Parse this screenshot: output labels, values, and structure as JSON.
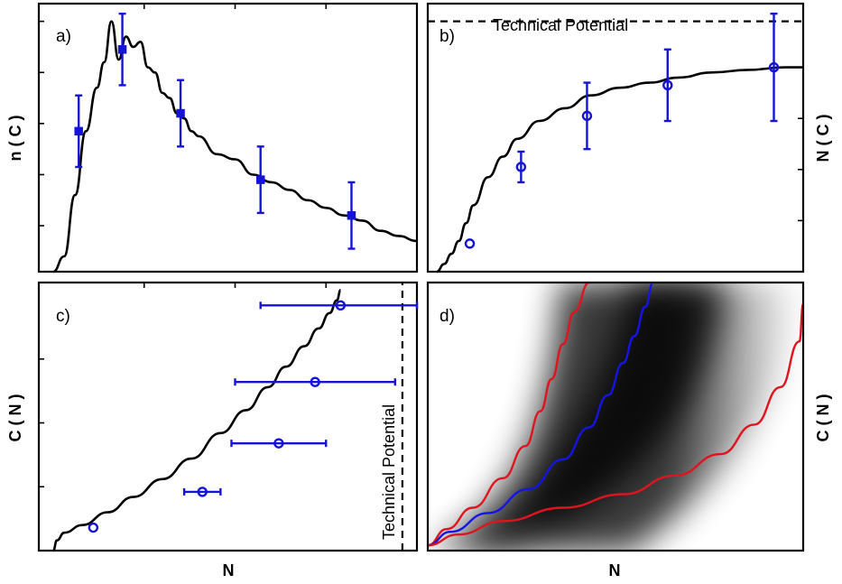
{
  "chart_data": [
    {
      "panel_label": "a)",
      "type": "line",
      "xlabel": "",
      "ylabel": "n ( C )",
      "series": [
        {
          "kind": "curve",
          "x": [
            0.0,
            0.03,
            0.06,
            0.09,
            0.12,
            0.14,
            0.16,
            0.18,
            0.2,
            0.22,
            0.24,
            0.26,
            0.28,
            0.3,
            0.32,
            0.34,
            0.36,
            0.38,
            0.4,
            0.45,
            0.5,
            0.55,
            0.6,
            0.65,
            0.7,
            0.75,
            0.8,
            0.85,
            0.9,
            0.95,
            1.0
          ],
          "y": [
            0.0,
            0.06,
            0.3,
            0.55,
            0.72,
            0.82,
            0.98,
            0.83,
            0.92,
            0.88,
            0.9,
            0.8,
            0.78,
            0.7,
            0.68,
            0.62,
            0.6,
            0.55,
            0.53,
            0.46,
            0.44,
            0.38,
            0.35,
            0.32,
            0.28,
            0.25,
            0.22,
            0.2,
            0.16,
            0.14,
            0.12
          ]
        },
        {
          "kind": "points",
          "marker": "square",
          "x": [
            0.07,
            0.19,
            0.35,
            0.57,
            0.82
          ],
          "y": [
            0.55,
            0.87,
            0.62,
            0.36,
            0.22
          ],
          "err_y": [
            0.14,
            0.14,
            0.13,
            0.13,
            0.13
          ]
        }
      ]
    },
    {
      "panel_label": "b)",
      "type": "line",
      "xlabel": "",
      "ylabel": "N ( C )",
      "annotation": "Technical Potential",
      "technical_potential": 0.98,
      "series": [
        {
          "kind": "curve",
          "x": [
            0.0,
            0.02,
            0.04,
            0.06,
            0.08,
            0.1,
            0.14,
            0.18,
            0.22,
            0.28,
            0.35,
            0.42,
            0.5,
            0.58,
            0.66,
            0.75,
            0.85,
            0.95,
            1.0
          ],
          "y": [
            0.0,
            0.03,
            0.07,
            0.12,
            0.19,
            0.26,
            0.37,
            0.45,
            0.52,
            0.59,
            0.64,
            0.69,
            0.72,
            0.74,
            0.76,
            0.78,
            0.79,
            0.8,
            0.8
          ]
        },
        {
          "kind": "points",
          "marker": "circle",
          "x": [
            0.09,
            0.23,
            0.41,
            0.63,
            0.92
          ],
          "y": [
            0.11,
            0.41,
            0.61,
            0.73,
            0.8
          ],
          "err_y": [
            0.0,
            0.06,
            0.13,
            0.14,
            0.21
          ]
        }
      ]
    },
    {
      "panel_label": "c)",
      "type": "line",
      "xlabel": "N",
      "ylabel": "C ( N )",
      "annotation": "Technical Potential",
      "technical_potential": 0.96,
      "series": [
        {
          "kind": "curve",
          "x": [
            0.0,
            0.01,
            0.03,
            0.08,
            0.15,
            0.22,
            0.3,
            0.38,
            0.46,
            0.53,
            0.59,
            0.64,
            0.69,
            0.73,
            0.76,
            0.78,
            0.79
          ],
          "y": [
            0.0,
            0.04,
            0.07,
            0.1,
            0.15,
            0.21,
            0.28,
            0.36,
            0.46,
            0.55,
            0.64,
            0.72,
            0.8,
            0.87,
            0.93,
            0.98,
            1.02
          ]
        },
        {
          "kind": "points",
          "marker": "circle",
          "x": [
            0.11,
            0.41,
            0.62,
            0.72,
            0.79
          ],
          "y": [
            0.09,
            0.23,
            0.42,
            0.66,
            0.96
          ],
          "err_x": [
            0.0,
            0.05,
            0.13,
            0.22,
            0.22
          ]
        }
      ]
    },
    {
      "panel_label": "d)",
      "type": "heatmap",
      "xlabel": "N",
      "ylabel": "C ( N )",
      "series": [
        {
          "kind": "curve",
          "color": "#e0141e",
          "x": [
            0.0,
            0.05,
            0.12,
            0.2,
            0.26,
            0.3,
            0.33,
            0.36,
            0.39,
            0.43
          ],
          "y": [
            0.02,
            0.08,
            0.16,
            0.27,
            0.39,
            0.52,
            0.64,
            0.77,
            0.89,
            1.0
          ]
        },
        {
          "kind": "curve",
          "color": "#1414e6",
          "x": [
            0.0,
            0.06,
            0.16,
            0.27,
            0.36,
            0.43,
            0.48,
            0.52,
            0.55,
            0.58,
            0.6
          ],
          "y": [
            0.02,
            0.07,
            0.14,
            0.23,
            0.34,
            0.46,
            0.58,
            0.7,
            0.8,
            0.91,
            1.0
          ]
        },
        {
          "kind": "curve",
          "color": "#e0141e",
          "x": [
            0.0,
            0.08,
            0.2,
            0.36,
            0.52,
            0.66,
            0.78,
            0.87,
            0.94,
            0.99,
            1.0
          ],
          "y": [
            0.02,
            0.06,
            0.11,
            0.16,
            0.21,
            0.28,
            0.36,
            0.47,
            0.61,
            0.78,
            0.92
          ]
        }
      ]
    }
  ],
  "colors": {
    "series_points": "#1414d2",
    "curve": "#000000",
    "bound": "#e0141e",
    "median": "#1414e6"
  }
}
